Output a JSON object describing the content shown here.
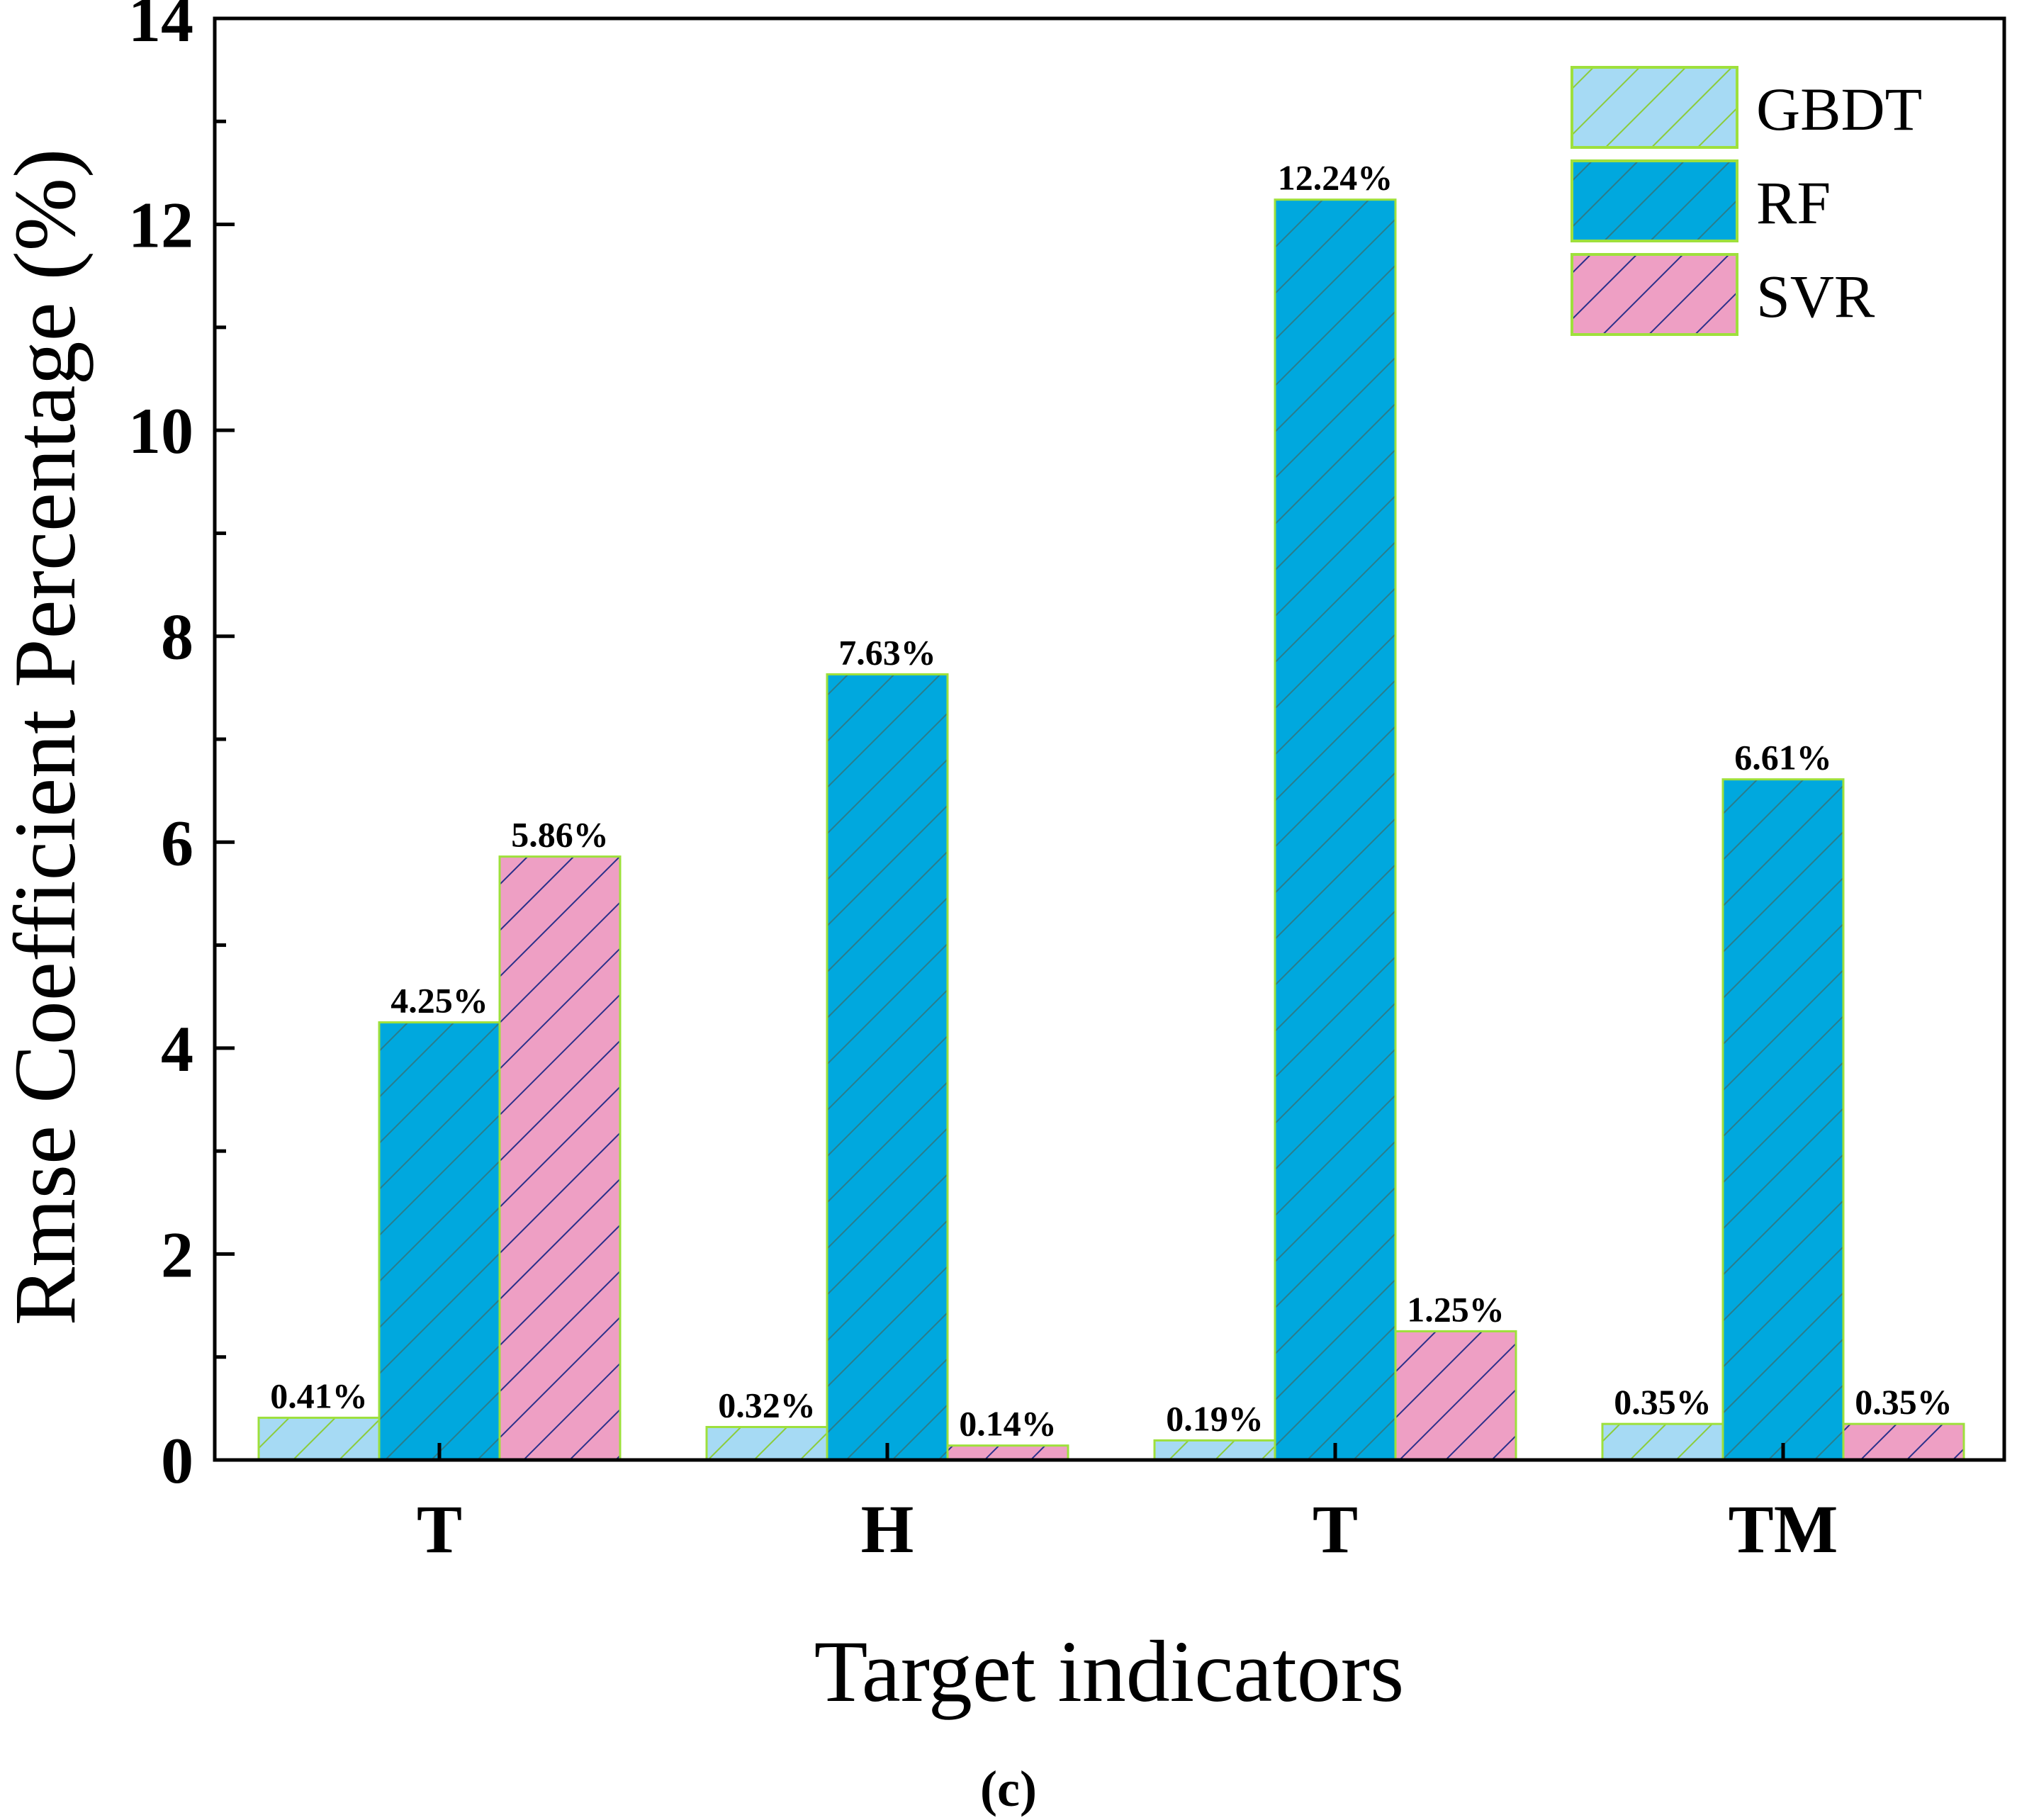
{
  "chart_data": {
    "type": "bar",
    "title": "",
    "xlabel": "Target indicators",
    "ylabel": "Rmse Coefficient Percentage (%)",
    "ylim": [
      0,
      14
    ],
    "yticks": [
      0,
      2,
      4,
      6,
      8,
      10,
      12,
      14
    ],
    "grid": false,
    "legend_position": "top-right",
    "categories": [
      "T",
      "H",
      "T",
      "TM"
    ],
    "series": [
      {
        "name": "GBDT",
        "color": "#a6daf4",
        "edge": "#9ee03c",
        "hatch_color": "#8ccc3c",
        "values": [
          0.41,
          0.32,
          0.19,
          0.35
        ],
        "labels": [
          "0.41%",
          "0.32%",
          "0.19%",
          "0.35%"
        ]
      },
      {
        "name": "RF",
        "color": "#00a8de",
        "edge": "#9ee03c",
        "hatch_color": "#2a7d8c",
        "values": [
          4.25,
          7.63,
          12.24,
          6.61
        ],
        "labels": [
          "4.25%",
          "7.63%",
          "12.24%",
          "6.61%"
        ]
      },
      {
        "name": "SVR",
        "color": "#ee9fc4",
        "edge": "#9ee03c",
        "hatch_color": "#2a2f8a",
        "values": [
          5.86,
          0.14,
          1.25,
          0.35
        ],
        "labels": [
          "5.86%",
          "0.14%",
          "1.25%",
          "0.35%"
        ]
      }
    ],
    "caption": "(c)"
  }
}
